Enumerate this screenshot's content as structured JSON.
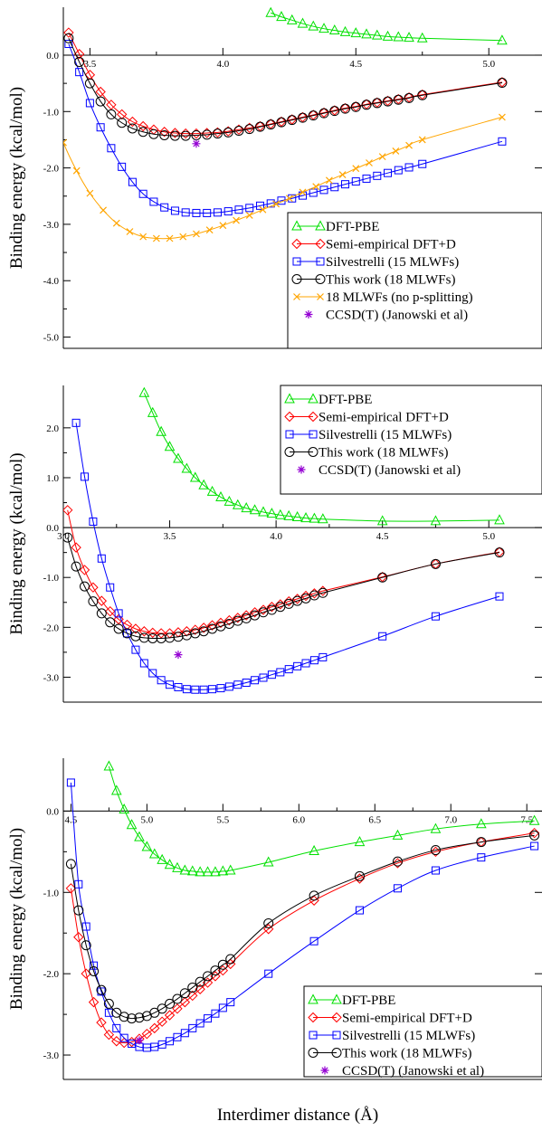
{
  "figure": {
    "xlabel": "Interdimer distance (Å)"
  },
  "chart_data": [
    {
      "type": "line",
      "panel": "top",
      "ylabel": "Binding energy (kcal/mol)",
      "xlim": [
        3.4,
        5.2
      ],
      "ylim": [
        -5.2,
        0.85
      ],
      "xticks": [
        3.5,
        4.0,
        4.5,
        5.0
      ],
      "xtick_labels": [
        "3.5",
        "4.0",
        "4.5",
        "5.0"
      ],
      "yticks": [
        0.0,
        -1.0,
        -2.0,
        -3.0,
        -4.0,
        -5.0
      ],
      "ytick_labels": [
        "0.0",
        "-1.0",
        "-2.0",
        "-3.0",
        "-4.0",
        "-5.0"
      ],
      "legend_position": "bottom-right",
      "series": [
        {
          "name": "DFT-PBE",
          "color": "#00e000",
          "marker": "triangle",
          "x": [
            4.18,
            4.22,
            4.26,
            4.3,
            4.34,
            4.38,
            4.42,
            4.46,
            4.5,
            4.54,
            4.58,
            4.62,
            4.66,
            4.7,
            4.75,
            5.05
          ],
          "y": [
            0.75,
            0.68,
            0.62,
            0.56,
            0.51,
            0.47,
            0.44,
            0.41,
            0.39,
            0.37,
            0.35,
            0.33,
            0.32,
            0.31,
            0.3,
            0.26
          ]
        },
        {
          "name": "Semi-empirical DFT+D",
          "color": "#ff0000",
          "marker": "diamond",
          "x": [
            3.42,
            3.46,
            3.5,
            3.54,
            3.58,
            3.62,
            3.66,
            3.7,
            3.74,
            3.78,
            3.82,
            3.86,
            3.9,
            3.94,
            3.98,
            4.02,
            4.06,
            4.1,
            4.14,
            4.18,
            4.22,
            4.26,
            4.3,
            4.34,
            4.38,
            4.42,
            4.46,
            4.5,
            4.54,
            4.58,
            4.62,
            4.66,
            4.7,
            4.75,
            5.05
          ],
          "y": [
            0.4,
            0.02,
            -0.35,
            -0.65,
            -0.88,
            -1.05,
            -1.18,
            -1.26,
            -1.32,
            -1.36,
            -1.38,
            -1.39,
            -1.39,
            -1.38,
            -1.37,
            -1.35,
            -1.32,
            -1.29,
            -1.26,
            -1.22,
            -1.18,
            -1.14,
            -1.1,
            -1.06,
            -1.02,
            -0.98,
            -0.94,
            -0.91,
            -0.87,
            -0.84,
            -0.81,
            -0.78,
            -0.75,
            -0.7,
            -0.48
          ]
        },
        {
          "name": "Silvestrelli (15 MLWFs)",
          "color": "#0000ff",
          "marker": "square",
          "x": [
            3.42,
            3.46,
            3.5,
            3.54,
            3.58,
            3.62,
            3.66,
            3.7,
            3.74,
            3.78,
            3.82,
            3.86,
            3.9,
            3.94,
            3.98,
            4.02,
            4.06,
            4.1,
            4.14,
            4.18,
            4.22,
            4.26,
            4.3,
            4.34,
            4.38,
            4.42,
            4.46,
            4.5,
            4.54,
            4.58,
            4.62,
            4.66,
            4.7,
            4.75,
            5.05
          ],
          "y": [
            0.2,
            -0.3,
            -0.85,
            -1.28,
            -1.65,
            -1.98,
            -2.25,
            -2.46,
            -2.6,
            -2.7,
            -2.76,
            -2.79,
            -2.8,
            -2.8,
            -2.79,
            -2.77,
            -2.74,
            -2.71,
            -2.67,
            -2.63,
            -2.58,
            -2.54,
            -2.49,
            -2.44,
            -2.39,
            -2.34,
            -2.29,
            -2.24,
            -2.19,
            -2.14,
            -2.09,
            -2.04,
            -1.99,
            -1.93,
            -1.53
          ]
        },
        {
          "name": "This work (18 MLWFs)",
          "color": "#000000",
          "marker": "circle",
          "x": [
            3.42,
            3.46,
            3.5,
            3.54,
            3.58,
            3.62,
            3.66,
            3.7,
            3.74,
            3.78,
            3.82,
            3.86,
            3.9,
            3.94,
            3.98,
            4.02,
            4.06,
            4.1,
            4.14,
            4.18,
            4.22,
            4.26,
            4.3,
            4.34,
            4.38,
            4.42,
            4.46,
            4.5,
            4.54,
            4.58,
            4.62,
            4.66,
            4.7,
            4.75,
            5.05
          ],
          "y": [
            0.3,
            -0.12,
            -0.5,
            -0.82,
            -1.05,
            -1.2,
            -1.3,
            -1.36,
            -1.4,
            -1.42,
            -1.43,
            -1.43,
            -1.42,
            -1.41,
            -1.39,
            -1.37,
            -1.34,
            -1.31,
            -1.27,
            -1.23,
            -1.19,
            -1.15,
            -1.11,
            -1.07,
            -1.03,
            -0.99,
            -0.95,
            -0.92,
            -0.88,
            -0.85,
            -0.82,
            -0.79,
            -0.76,
            -0.71,
            -0.49
          ]
        },
        {
          "name": "18 MLWFs (no p-splitting)",
          "color": "#ffa500",
          "marker": "x",
          "x": [
            3.35,
            3.4,
            3.45,
            3.5,
            3.55,
            3.6,
            3.65,
            3.7,
            3.75,
            3.8,
            3.85,
            3.9,
            3.95,
            4.0,
            4.05,
            4.1,
            4.15,
            4.2,
            4.25,
            4.3,
            4.35,
            4.4,
            4.45,
            4.5,
            4.55,
            4.6,
            4.65,
            4.7,
            4.75,
            5.05
          ],
          "y": [
            -0.9,
            -1.55,
            -2.05,
            -2.45,
            -2.75,
            -2.98,
            -3.13,
            -3.22,
            -3.25,
            -3.25,
            -3.22,
            -3.17,
            -3.1,
            -3.02,
            -2.93,
            -2.84,
            -2.74,
            -2.64,
            -2.54,
            -2.43,
            -2.33,
            -2.22,
            -2.12,
            -2.01,
            -1.91,
            -1.8,
            -1.7,
            -1.6,
            -1.5,
            -1.1
          ]
        },
        {
          "name": "CCSD(T) (Janowski et al)",
          "color": "#9400d3",
          "marker": "star",
          "x": [
            3.9
          ],
          "y": [
            -1.57
          ]
        }
      ]
    },
    {
      "type": "line",
      "panel": "middle",
      "ylabel": "Binding energy (kcal/mol)",
      "xlim": [
        3.0,
        5.25
      ],
      "ylim": [
        -3.5,
        2.85
      ],
      "xticks": [
        3.0,
        3.5,
        4.0,
        4.5,
        5.0
      ],
      "xtick_labels": [
        "3.0",
        "3.5",
        "4.0",
        "4.5",
        "5.0"
      ],
      "yticks": [
        2.0,
        1.0,
        0.0,
        -1.0,
        -2.0,
        -3.0
      ],
      "ytick_labels": [
        "2.0",
        "1.0",
        "0.0",
        "-1.0",
        "-2.0",
        "-3.0"
      ],
      "legend_position": "top-right",
      "series": [
        {
          "name": "DFT-PBE",
          "color": "#00e000",
          "marker": "triangle",
          "x": [
            3.38,
            3.42,
            3.46,
            3.5,
            3.54,
            3.58,
            3.62,
            3.66,
            3.7,
            3.74,
            3.78,
            3.82,
            3.86,
            3.9,
            3.94,
            3.98,
            4.02,
            4.06,
            4.1,
            4.14,
            4.18,
            4.22,
            4.5,
            4.75,
            5.05
          ],
          "y": [
            2.7,
            2.3,
            1.92,
            1.62,
            1.38,
            1.18,
            1.0,
            0.85,
            0.72,
            0.61,
            0.52,
            0.45,
            0.39,
            0.35,
            0.31,
            0.28,
            0.25,
            0.23,
            0.21,
            0.19,
            0.18,
            0.17,
            0.13,
            0.13,
            0.15
          ]
        },
        {
          "name": "Semi-empirical DFT+D",
          "color": "#ff0000",
          "marker": "diamond",
          "x": [
            3.02,
            3.06,
            3.1,
            3.14,
            3.18,
            3.22,
            3.26,
            3.3,
            3.34,
            3.38,
            3.42,
            3.46,
            3.5,
            3.54,
            3.58,
            3.62,
            3.66,
            3.7,
            3.74,
            3.78,
            3.82,
            3.86,
            3.9,
            3.94,
            3.98,
            4.02,
            4.06,
            4.1,
            4.14,
            4.18,
            4.22,
            4.5,
            4.75,
            5.05
          ],
          "y": [
            0.35,
            -0.4,
            -0.85,
            -1.2,
            -1.47,
            -1.68,
            -1.84,
            -1.95,
            -2.03,
            -2.08,
            -2.11,
            -2.12,
            -2.12,
            -2.1,
            -2.08,
            -2.05,
            -2.01,
            -1.96,
            -1.91,
            -1.86,
            -1.81,
            -1.76,
            -1.7,
            -1.65,
            -1.59,
            -1.54,
            -1.48,
            -1.43,
            -1.37,
            -1.32,
            -1.27,
            -0.99,
            -0.73,
            -0.49
          ]
        },
        {
          "name": "Silvestrelli (15 MLWFs)",
          "color": "#0000ff",
          "marker": "square",
          "x": [
            3.06,
            3.1,
            3.14,
            3.18,
            3.22,
            3.26,
            3.3,
            3.34,
            3.38,
            3.42,
            3.46,
            3.5,
            3.54,
            3.58,
            3.62,
            3.66,
            3.7,
            3.74,
            3.78,
            3.82,
            3.86,
            3.9,
            3.94,
            3.98,
            4.02,
            4.06,
            4.1,
            4.14,
            4.18,
            4.22,
            4.5,
            4.75,
            5.05
          ],
          "y": [
            2.1,
            1.02,
            0.12,
            -0.62,
            -1.2,
            -1.72,
            -2.12,
            -2.45,
            -2.72,
            -2.92,
            -3.06,
            -3.15,
            -3.2,
            -3.24,
            -3.25,
            -3.25,
            -3.24,
            -3.22,
            -3.19,
            -3.15,
            -3.11,
            -3.06,
            -3.01,
            -2.95,
            -2.9,
            -2.84,
            -2.78,
            -2.72,
            -2.66,
            -2.6,
            -2.18,
            -1.78,
            -1.38
          ]
        },
        {
          "name": "This work (18 MLWFs)",
          "color": "#000000",
          "marker": "circle",
          "x": [
            3.02,
            3.06,
            3.1,
            3.14,
            3.18,
            3.22,
            3.26,
            3.3,
            3.34,
            3.38,
            3.42,
            3.46,
            3.5,
            3.54,
            3.58,
            3.62,
            3.66,
            3.7,
            3.74,
            3.78,
            3.82,
            3.86,
            3.9,
            3.94,
            3.98,
            4.02,
            4.06,
            4.1,
            4.14,
            4.18,
            4.22,
            4.5,
            4.75,
            5.05
          ],
          "y": [
            -0.2,
            -0.78,
            -1.18,
            -1.48,
            -1.72,
            -1.9,
            -2.03,
            -2.12,
            -2.18,
            -2.21,
            -2.22,
            -2.22,
            -2.21,
            -2.19,
            -2.16,
            -2.12,
            -2.08,
            -2.03,
            -1.98,
            -1.93,
            -1.87,
            -1.82,
            -1.76,
            -1.7,
            -1.65,
            -1.59,
            -1.53,
            -1.47,
            -1.42,
            -1.36,
            -1.31,
            -1.0,
            -0.73,
            -0.5
          ]
        },
        {
          "name": "CCSD(T) (Janowski et al)",
          "color": "#9400d3",
          "marker": "star",
          "x": [
            3.54
          ],
          "y": [
            -2.55
          ]
        }
      ]
    },
    {
      "type": "line",
      "panel": "bottom",
      "ylabel": "Binding energy (kcal/mol)",
      "xlim": [
        4.45,
        7.6
      ],
      "ylim": [
        -3.3,
        0.65
      ],
      "xticks": [
        4.5,
        5.0,
        5.5,
        6.0,
        6.5,
        7.0,
        7.5
      ],
      "xtick_labels": [
        "4.5",
        "5.0",
        "5.5",
        "6.0",
        "6.5",
        "7.0",
        "7.5"
      ],
      "yticks": [
        0.0,
        -1.0,
        -2.0,
        -3.0
      ],
      "ytick_labels": [
        "0.0",
        "-1.0",
        "-2.0",
        "-3.0"
      ],
      "legend_position": "bottom-right",
      "series": [
        {
          "name": "DFT-PBE",
          "color": "#00e000",
          "marker": "triangle",
          "x": [
            4.75,
            4.8,
            4.85,
            4.9,
            4.95,
            5.0,
            5.05,
            5.1,
            5.15,
            5.2,
            5.25,
            5.3,
            5.35,
            5.4,
            5.45,
            5.5,
            5.55,
            5.8,
            6.1,
            6.4,
            6.65,
            6.9,
            7.2,
            7.55
          ],
          "y": [
            0.55,
            0.25,
            0.02,
            -0.17,
            -0.32,
            -0.44,
            -0.53,
            -0.6,
            -0.66,
            -0.7,
            -0.73,
            -0.74,
            -0.75,
            -0.75,
            -0.75,
            -0.74,
            -0.73,
            -0.63,
            -0.49,
            -0.38,
            -0.3,
            -0.22,
            -0.16,
            -0.12
          ]
        },
        {
          "name": "Semi-empirical DFT+D",
          "color": "#ff0000",
          "marker": "diamond",
          "x": [
            4.5,
            4.55,
            4.6,
            4.65,
            4.7,
            4.75,
            4.8,
            4.85,
            4.9,
            4.95,
            5.0,
            5.05,
            5.1,
            5.15,
            5.2,
            5.25,
            5.3,
            5.35,
            5.4,
            5.45,
            5.5,
            5.55,
            5.8,
            6.1,
            6.4,
            6.65,
            6.9,
            7.2,
            7.55
          ],
          "y": [
            -0.95,
            -1.55,
            -2.0,
            -2.35,
            -2.6,
            -2.75,
            -2.83,
            -2.85,
            -2.84,
            -2.8,
            -2.74,
            -2.67,
            -2.59,
            -2.51,
            -2.43,
            -2.35,
            -2.27,
            -2.19,
            -2.11,
            -2.03,
            -1.96,
            -1.88,
            -1.45,
            -1.1,
            -0.83,
            -0.64,
            -0.5,
            -0.38,
            -0.27
          ]
        },
        {
          "name": "Silvestrelli (15 MLWFs)",
          "color": "#0000ff",
          "marker": "square",
          "x": [
            4.5,
            4.55,
            4.6,
            4.65,
            4.7,
            4.75,
            4.8,
            4.85,
            4.9,
            4.95,
            5.0,
            5.05,
            5.1,
            5.15,
            5.2,
            5.25,
            5.3,
            5.35,
            5.4,
            5.45,
            5.5,
            5.55,
            5.8,
            6.1,
            6.4,
            6.65,
            6.9,
            7.2,
            7.55
          ],
          "y": [
            0.35,
            -0.9,
            -1.42,
            -1.9,
            -2.22,
            -2.48,
            -2.67,
            -2.79,
            -2.86,
            -2.9,
            -2.91,
            -2.9,
            -2.87,
            -2.83,
            -2.78,
            -2.73,
            -2.67,
            -2.61,
            -2.55,
            -2.49,
            -2.42,
            -2.35,
            -2.0,
            -1.6,
            -1.22,
            -0.95,
            -0.73,
            -0.57,
            -0.43
          ]
        },
        {
          "name": "This work (18 MLWFs)",
          "color": "#000000",
          "marker": "circle",
          "x": [
            4.5,
            4.55,
            4.6,
            4.65,
            4.7,
            4.75,
            4.8,
            4.85,
            4.9,
            4.95,
            5.0,
            5.05,
            5.1,
            5.15,
            5.2,
            5.25,
            5.3,
            5.35,
            5.4,
            5.45,
            5.5,
            5.55,
            5.8,
            6.1,
            6.4,
            6.65,
            6.9,
            7.2,
            7.55
          ],
          "y": [
            -0.65,
            -1.22,
            -1.65,
            -1.97,
            -2.2,
            -2.37,
            -2.48,
            -2.53,
            -2.55,
            -2.54,
            -2.52,
            -2.48,
            -2.43,
            -2.37,
            -2.31,
            -2.24,
            -2.17,
            -2.1,
            -2.03,
            -1.96,
            -1.89,
            -1.82,
            -1.38,
            -1.04,
            -0.8,
            -0.62,
            -0.48,
            -0.38,
            -0.3
          ]
        },
        {
          "name": "CCSD(T) (Janowski et al)",
          "color": "#9400d3",
          "marker": "star",
          "x": [
            4.95
          ],
          "y": [
            -2.82
          ]
        }
      ]
    }
  ]
}
